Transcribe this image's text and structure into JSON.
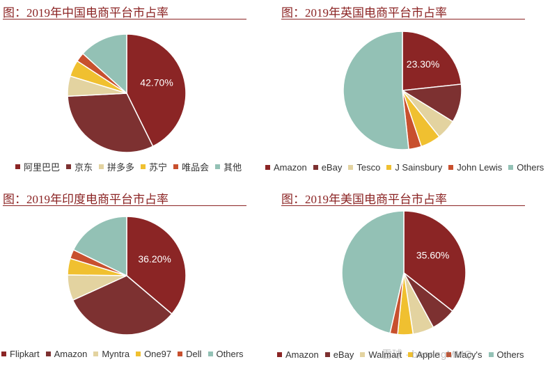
{
  "colors": [
    "#8b2525",
    "#7d3131",
    "#e3d3a0",
    "#f0c030",
    "#c8502e",
    "#93c1b5"
  ],
  "chart_data": [
    {
      "type": "pie",
      "title": "图：2019年中国电商平台市占率",
      "labels": [
        "阿里巴巴",
        "京东",
        "拼多多",
        "苏宁",
        "唯品会",
        "其他"
      ],
      "values": [
        42.7,
        31.5,
        5.5,
        4.5,
        2.5,
        13.3
      ],
      "data_labels": [
        "42.70%",
        "",
        "",
        "",
        "",
        ""
      ],
      "legend_position": "bottom"
    },
    {
      "type": "pie",
      "title": "图：2019年英国电商平台市占率",
      "labels": [
        "Amazon",
        "eBay",
        "Tesco",
        "J Sainsbury",
        "John Lewis",
        "Others"
      ],
      "values": [
        23.3,
        10.5,
        5.5,
        5.5,
        3.5,
        51.7
      ],
      "data_labels": [
        "23.30%",
        "",
        "",
        "",
        "",
        ""
      ],
      "legend_position": "bottom"
    },
    {
      "type": "pie",
      "title": "图：2019年印度电商平台市占率",
      "labels": [
        "Flipkart",
        "Amazon",
        "Myntra",
        "One97",
        "Dell",
        "Others"
      ],
      "values": [
        36.2,
        32,
        7,
        4.5,
        2.5,
        17.8
      ],
      "data_labels": [
        "36.20%",
        "",
        "",
        "",
        "",
        ""
      ],
      "legend_position": "bottom"
    },
    {
      "type": "pie",
      "title": "图：2019年美国电商平台市占率",
      "labels": [
        "Amazon",
        "eBay",
        "Walmart",
        "Apple",
        "Macy's",
        "Others"
      ],
      "values": [
        35.6,
        6.5,
        5.5,
        4,
        2,
        46.4
      ],
      "data_labels": [
        "35.60%",
        "",
        "",
        "",
        "",
        ""
      ],
      "legend_position": "bottom"
    }
  ],
  "watermark": "雪球 · bearingMMQ"
}
